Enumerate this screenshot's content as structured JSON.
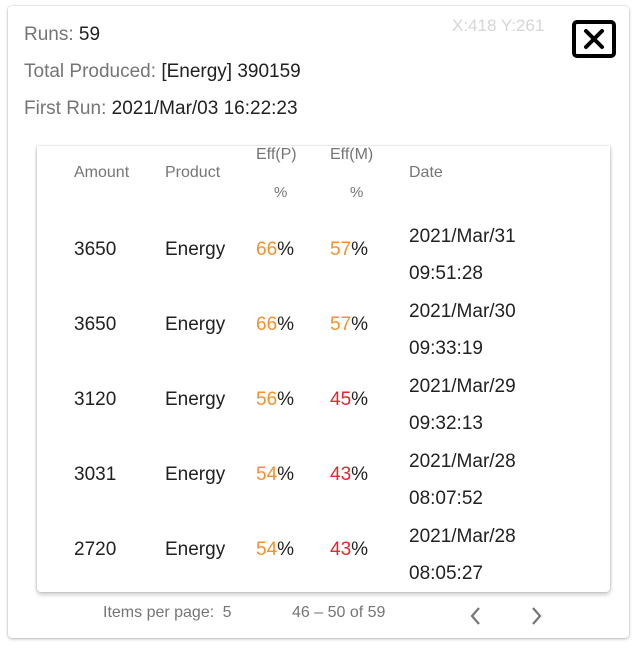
{
  "summary": {
    "runs_label": "Runs:",
    "runs_value": "59",
    "produced_label": "Total Produced:",
    "produced_value": "[Energy] 390159",
    "first_run_label": "First Run:",
    "first_run_value": "2021/Mar/03 16:22:23"
  },
  "coords_readout": "X:418 Y:261",
  "close_icon": "close-x-icon",
  "table": {
    "headers": {
      "amount": "Amount",
      "product": "Product",
      "eff_p": "Eff(P)",
      "eff_p_unit": "%",
      "eff_m": "Eff(M)",
      "eff_m_unit": "%",
      "date": "Date"
    },
    "rows": [
      {
        "amount": "3650",
        "product": "Energy",
        "eff_p": "66",
        "eff_m": "57",
        "date_line1": "2021/Mar/31",
        "date_line2": "09:51:28"
      },
      {
        "amount": "3650",
        "product": "Energy",
        "eff_p": "66",
        "eff_m": "57",
        "date_line1": "2021/Mar/30",
        "date_line2": "09:33:19"
      },
      {
        "amount": "3120",
        "product": "Energy",
        "eff_p": "56",
        "eff_m": "45",
        "date_line1": "2021/Mar/29",
        "date_line2": "09:32:13"
      },
      {
        "amount": "3031",
        "product": "Energy",
        "eff_p": "54",
        "eff_m": "43",
        "date_line1": "2021/Mar/28",
        "date_line2": "08:07:52"
      },
      {
        "amount": "2720",
        "product": "Energy",
        "eff_p": "54",
        "eff_m": "43",
        "date_line1": "2021/Mar/28",
        "date_line2": "08:05:27"
      }
    ],
    "percent_sign": "%"
  },
  "paginator": {
    "items_per_page_label": "Items per page:",
    "items_per_page_value": "5",
    "range_label": "46 – 50 of 59",
    "prev_icon": "chevron-left-icon",
    "next_icon": "chevron-right-icon"
  },
  "colors": {
    "orange": "#f4912d",
    "red": "#e8262b"
  }
}
